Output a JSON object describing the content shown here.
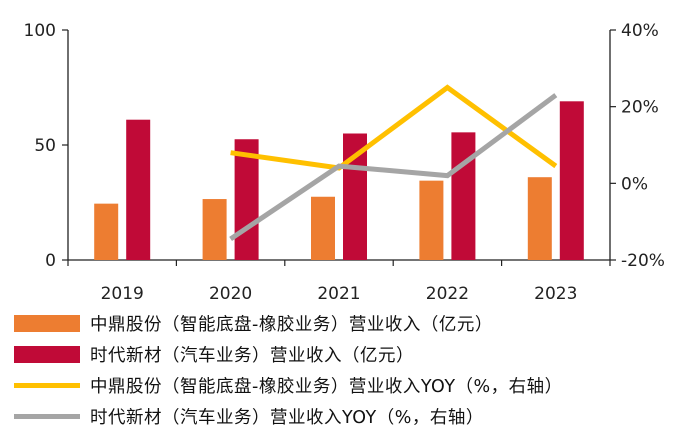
{
  "chart_data": {
    "type": "bar",
    "categories": [
      "2019",
      "2020",
      "2021",
      "2022",
      "2023"
    ],
    "left_axis": {
      "ylim": [
        0,
        100
      ],
      "ticks": [
        "0",
        "50",
        "100"
      ],
      "tick_values": [
        0,
        50,
        100
      ]
    },
    "right_axis": {
      "ylim": [
        -20,
        40
      ],
      "ticks": [
        "-20%",
        "0%",
        "20%",
        "40%"
      ],
      "tick_values": [
        -20,
        0,
        20,
        40
      ]
    },
    "series": [
      {
        "name": "中鼎股份（智能底盘-橡胶业务）营业收入（亿元）",
        "kind": "bar",
        "axis": "left",
        "color": "#ED7D31",
        "values": [
          24.5,
          26.5,
          27.5,
          34.5,
          36
        ]
      },
      {
        "name": "时代新材（汽车业务）营业收入（亿元）",
        "kind": "bar",
        "axis": "left",
        "color": "#C00A37",
        "values": [
          61,
          52.5,
          55,
          55.5,
          69
        ]
      },
      {
        "name": "中鼎股份（智能底盘-橡胶业务）营业收入YOY（%，右轴）",
        "kind": "line",
        "axis": "right",
        "color": "#FFC000",
        "values": [
          null,
          8,
          4,
          25,
          4.5
        ]
      },
      {
        "name": "时代新材（汽车业务）营业收入YOY（%，右轴）",
        "kind": "line",
        "axis": "right",
        "color": "#A5A5A5",
        "values": [
          null,
          -14.5,
          4.5,
          2,
          23
        ]
      }
    ],
    "title": "",
    "xlabel": "",
    "ylabel": "",
    "grid": false,
    "legend": "bottom"
  }
}
